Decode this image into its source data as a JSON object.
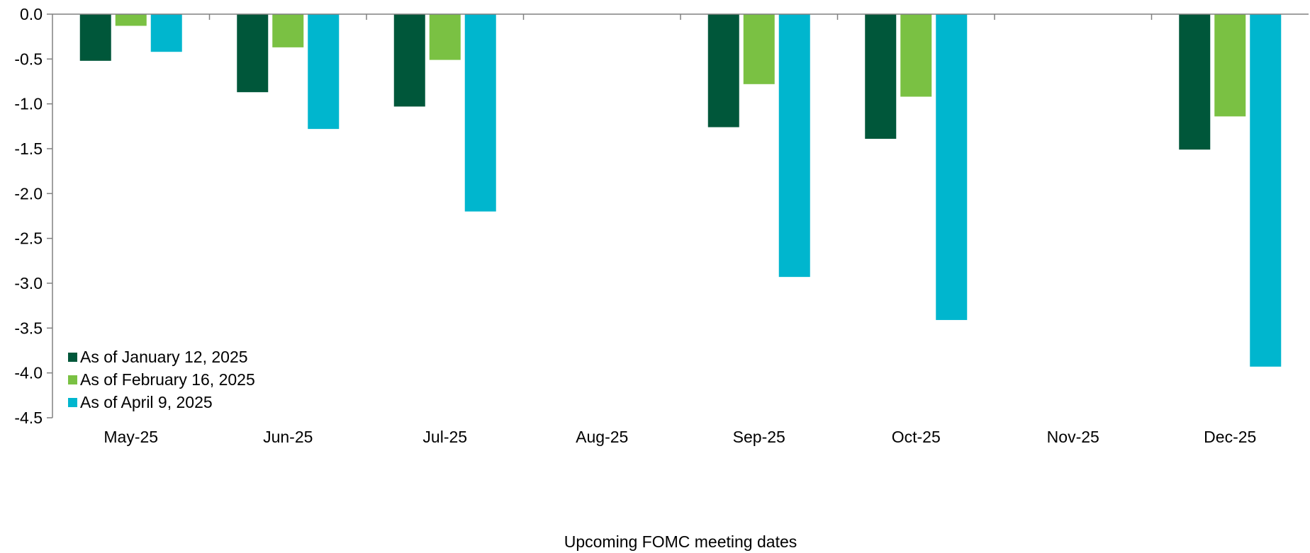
{
  "chart_data": {
    "type": "bar",
    "xlabel": "Upcoming FOMC meeting dates",
    "ylabel": "",
    "ylim": [
      -4.5,
      0.0
    ],
    "y_ticks": [
      "0.0",
      "-0.5",
      "-1.0",
      "-1.5",
      "-2.0",
      "-2.5",
      "-3.0",
      "-3.5",
      "-4.0",
      "-4.5"
    ],
    "categories": [
      "May-25",
      "Jun-25",
      "Jul-25",
      "Aug-25",
      "Sep-25",
      "Oct-25",
      "Nov-25",
      "Dec-25"
    ],
    "series": [
      {
        "name": "As of January 12, 2025",
        "color": "#00573A",
        "values": [
          -0.52,
          -0.87,
          -1.03,
          null,
          -1.26,
          -1.39,
          null,
          -1.51
        ]
      },
      {
        "name": "As of February 16, 2025",
        "color": "#7AC143",
        "values": [
          -0.13,
          -0.37,
          -0.51,
          null,
          -0.78,
          -0.92,
          null,
          -1.14
        ]
      },
      {
        "name": "As of April 9, 2025",
        "color": "#00B6CE",
        "values": [
          -0.42,
          -1.28,
          -2.2,
          null,
          -2.93,
          -3.41,
          null,
          -3.93
        ]
      }
    ],
    "legend_position": "bottom-left",
    "grid": false
  }
}
